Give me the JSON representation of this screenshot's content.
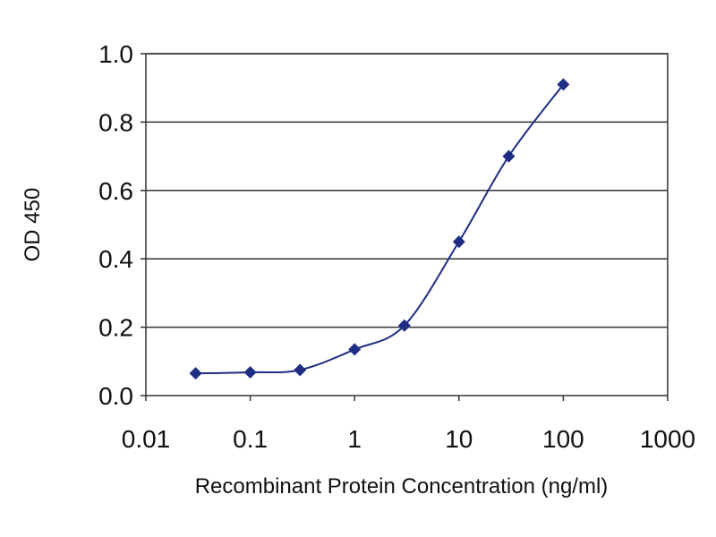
{
  "chart_data": {
    "type": "line",
    "title": "",
    "xlabel": "Recombinant Protein Concentration (ng/ml)",
    "ylabel": "OD 450",
    "x_scale": "log",
    "xlim": [
      0.01,
      1000
    ],
    "ylim": [
      0,
      1.0
    ],
    "x_ticks": [
      "0.01",
      "0.1",
      "1",
      "10",
      "100",
      "1000"
    ],
    "y_ticks": [
      "0.0",
      "0.2",
      "0.4",
      "0.6",
      "0.8",
      "1.0"
    ],
    "grid": "horizontal",
    "legend": "none",
    "series": [
      {
        "x": [
          0.03,
          0.1,
          0.3,
          1,
          3,
          10,
          30,
          100
        ],
        "y": [
          0.065,
          0.068,
          0.075,
          0.135,
          0.205,
          0.45,
          0.7,
          0.91
        ],
        "color": "#1f2d84"
      }
    ],
    "colors": {
      "plot_background": "#ffffff",
      "grid": "#333333",
      "axis": "#333333"
    }
  }
}
